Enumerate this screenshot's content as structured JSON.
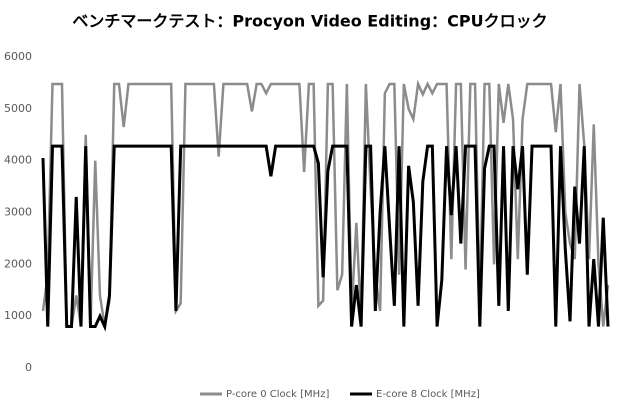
{
  "chart_data": {
    "type": "line",
    "title": "ベンチマークテスト：Procyon Video Editing：CPUクロック",
    "categories": [
      null,
      null,
      null,
      null,
      null,
      null,
      null,
      null,
      null,
      null,
      null,
      null,
      null,
      null,
      null,
      null,
      null,
      null,
      null,
      null,
      null,
      null,
      null,
      null,
      null,
      null,
      null,
      null,
      null,
      null,
      null,
      null,
      null,
      null,
      null,
      null,
      null,
      null,
      null,
      null,
      null,
      null,
      null,
      null,
      null,
      null,
      null,
      null,
      null,
      null,
      null,
      null,
      null,
      null,
      null,
      null,
      null,
      null,
      null,
      null,
      null,
      null,
      null,
      null,
      null,
      null,
      null,
      null,
      null,
      null,
      null,
      null,
      null,
      null,
      null,
      null,
      null,
      null,
      null,
      null,
      null,
      null,
      null,
      null,
      null,
      null,
      null,
      null,
      null,
      null,
      null,
      null,
      null,
      null,
      null,
      null,
      null,
      null,
      null,
      null,
      null,
      null,
      null,
      null,
      null,
      null,
      null,
      null,
      null,
      null,
      null,
      null,
      null,
      null,
      null,
      null,
      null,
      null,
      null,
      null
    ],
    "series": [
      {
        "name": "P-core 0 Clock [MHz]",
        "color": "#8c8c8c",
        "values": [
          1100,
          1800,
          5480,
          5480,
          5480,
          800,
          800,
          1400,
          800,
          4500,
          800,
          4000,
          1400,
          800,
          1300,
          5480,
          5480,
          4650,
          5480,
          5480,
          5480,
          5480,
          5480,
          5480,
          5480,
          5480,
          5480,
          5480,
          1100,
          1250,
          5480,
          5480,
          5480,
          5480,
          5480,
          5480,
          5480,
          4080,
          5480,
          5480,
          5480,
          5480,
          5480,
          5480,
          4950,
          5480,
          5480,
          5300,
          5480,
          5480,
          5480,
          5480,
          5480,
          5480,
          5480,
          3780,
          5480,
          5480,
          1200,
          1300,
          5480,
          5480,
          1500,
          1800,
          5480,
          1100,
          2800,
          900,
          5480,
          3450,
          1800,
          1100,
          5300,
          5480,
          5480,
          1800,
          5480,
          5000,
          4800,
          5480,
          5280,
          5480,
          5300,
          5480,
          5480,
          5480,
          2100,
          5480,
          5480,
          1900,
          5480,
          5480,
          1200,
          5480,
          5480,
          2000,
          5480,
          4730,
          5480,
          4800,
          2100,
          4800,
          5480,
          5480,
          5480,
          5480,
          5480,
          5480,
          4550,
          5480,
          3000,
          2400,
          2100,
          5480,
          4300,
          2100,
          4700,
          2000,
          800,
          1600
        ]
      },
      {
        "name": "E-core 8 Clock [MHz]",
        "color": "#000000",
        "values": [
          4050,
          800,
          4280,
          4280,
          4280,
          800,
          800,
          3300,
          800,
          4280,
          800,
          800,
          1000,
          800,
          1400,
          4280,
          4280,
          4280,
          4280,
          4280,
          4280,
          4280,
          4280,
          4280,
          4280,
          4280,
          4280,
          4280,
          1100,
          4280,
          4280,
          4280,
          4280,
          4280,
          4280,
          4280,
          4280,
          4280,
          4280,
          4280,
          4280,
          4280,
          4280,
          4280,
          4280,
          4280,
          4280,
          4280,
          3700,
          4280,
          4280,
          4280,
          4280,
          4280,
          4280,
          4280,
          4280,
          4280,
          3950,
          1750,
          3800,
          4280,
          4280,
          4280,
          4280,
          800,
          1600,
          800,
          4280,
          4280,
          1100,
          3000,
          4280,
          2700,
          1200,
          4280,
          800,
          3900,
          3200,
          1200,
          3600,
          4280,
          4280,
          800,
          1700,
          4280,
          2950,
          4280,
          2400,
          4280,
          4280,
          4280,
          800,
          3850,
          4280,
          4280,
          1200,
          4280,
          1100,
          4280,
          3450,
          4280,
          1800,
          4280,
          4280,
          4280,
          4280,
          4280,
          800,
          4280,
          2300,
          900,
          3500,
          2400,
          4280,
          800,
          2100,
          800,
          2900,
          800
        ]
      }
    ],
    "ylim": [
      0,
      6000
    ],
    "yticks": [
      0,
      1000,
      2000,
      3000,
      4000,
      5000,
      6000
    ],
    "grid": false,
    "legend": "bottom"
  }
}
